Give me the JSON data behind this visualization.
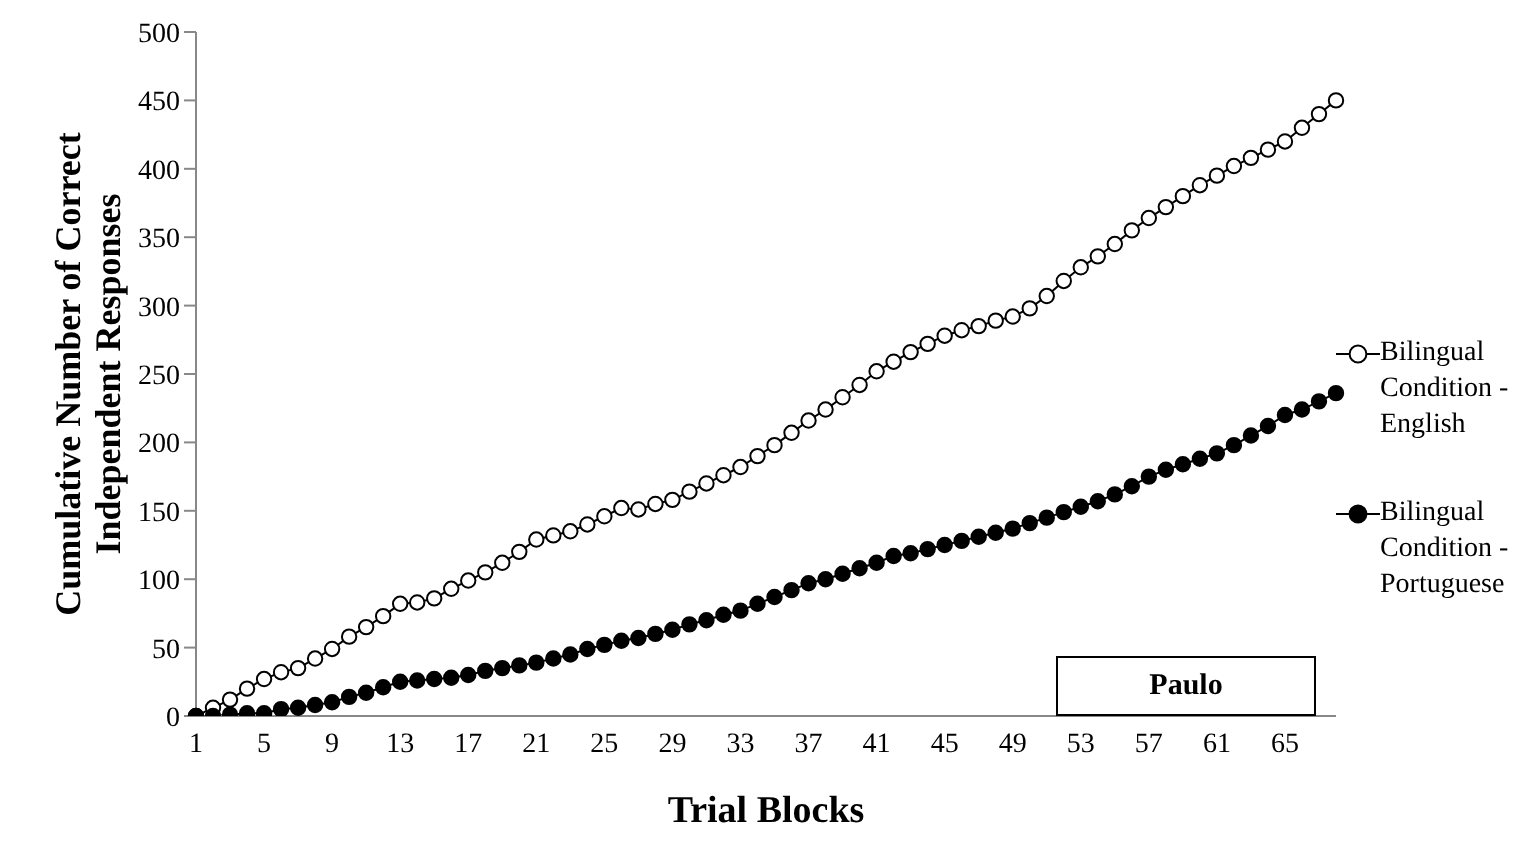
{
  "chart_data": {
    "type": "line",
    "xlabel": "Trial Blocks",
    "ylabel": "Cumulative Number of Correct Independent Responses",
    "categories": [
      "1",
      null,
      null,
      null,
      "5",
      null,
      null,
      null,
      "9",
      null,
      null,
      null,
      "13",
      null,
      null,
      null,
      "17",
      null,
      null,
      null,
      "21",
      null,
      null,
      null,
      "25",
      null,
      null,
      null,
      "29",
      null,
      null,
      null,
      "33",
      null,
      null,
      null,
      "37",
      null,
      null,
      null,
      "41",
      null,
      null,
      null,
      "45",
      null,
      null,
      null,
      "49",
      null,
      null,
      null,
      "53",
      null,
      null,
      null,
      "57",
      null,
      null,
      null,
      "61",
      null,
      null,
      null,
      "65",
      null,
      null,
      null
    ],
    "series": [
      {
        "name": "Bilingual Condition - English",
        "color": "#000000",
        "values": [
          0,
          6,
          12,
          20,
          27,
          32,
          35,
          42,
          49,
          58,
          65,
          73,
          82,
          83,
          86,
          93,
          99,
          105,
          112,
          120,
          129,
          132,
          135,
          140,
          146,
          152,
          151,
          155,
          158,
          164,
          170,
          176,
          182,
          190,
          198,
          207,
          216,
          224,
          233,
          242,
          252,
          259,
          266,
          272,
          278,
          282,
          285,
          289,
          292,
          298,
          307,
          318,
          328,
          336,
          345,
          355,
          364,
          372,
          380,
          388,
          395,
          402,
          408,
          414,
          420,
          430,
          440,
          450
        ]
      },
      {
        "name": "Bilingual Condition - Portuguese",
        "color": "#000000",
        "values": [
          0,
          0,
          1,
          2,
          2,
          5,
          6,
          8,
          10,
          14,
          17,
          21,
          25,
          26,
          27,
          28,
          30,
          33,
          35,
          37,
          39,
          42,
          45,
          49,
          52,
          55,
          57,
          60,
          63,
          67,
          70,
          74,
          77,
          82,
          87,
          92,
          97,
          100,
          104,
          108,
          112,
          117,
          119,
          122,
          125,
          128,
          131,
          134,
          137,
          141,
          145,
          149,
          153,
          157,
          162,
          168,
          175,
          180,
          184,
          188,
          192,
          198,
          205,
          212,
          220,
          224,
          230,
          236
        ]
      }
    ],
    "ylim": [
      0,
      500
    ],
    "yticks": [
      0,
      50,
      100,
      150,
      200,
      250,
      300,
      350,
      400,
      450,
      500
    ],
    "grid": false,
    "legend": "right",
    "marker": "circle",
    "line_style": "solid",
    "annotations": [
      "Paulo"
    ]
  }
}
